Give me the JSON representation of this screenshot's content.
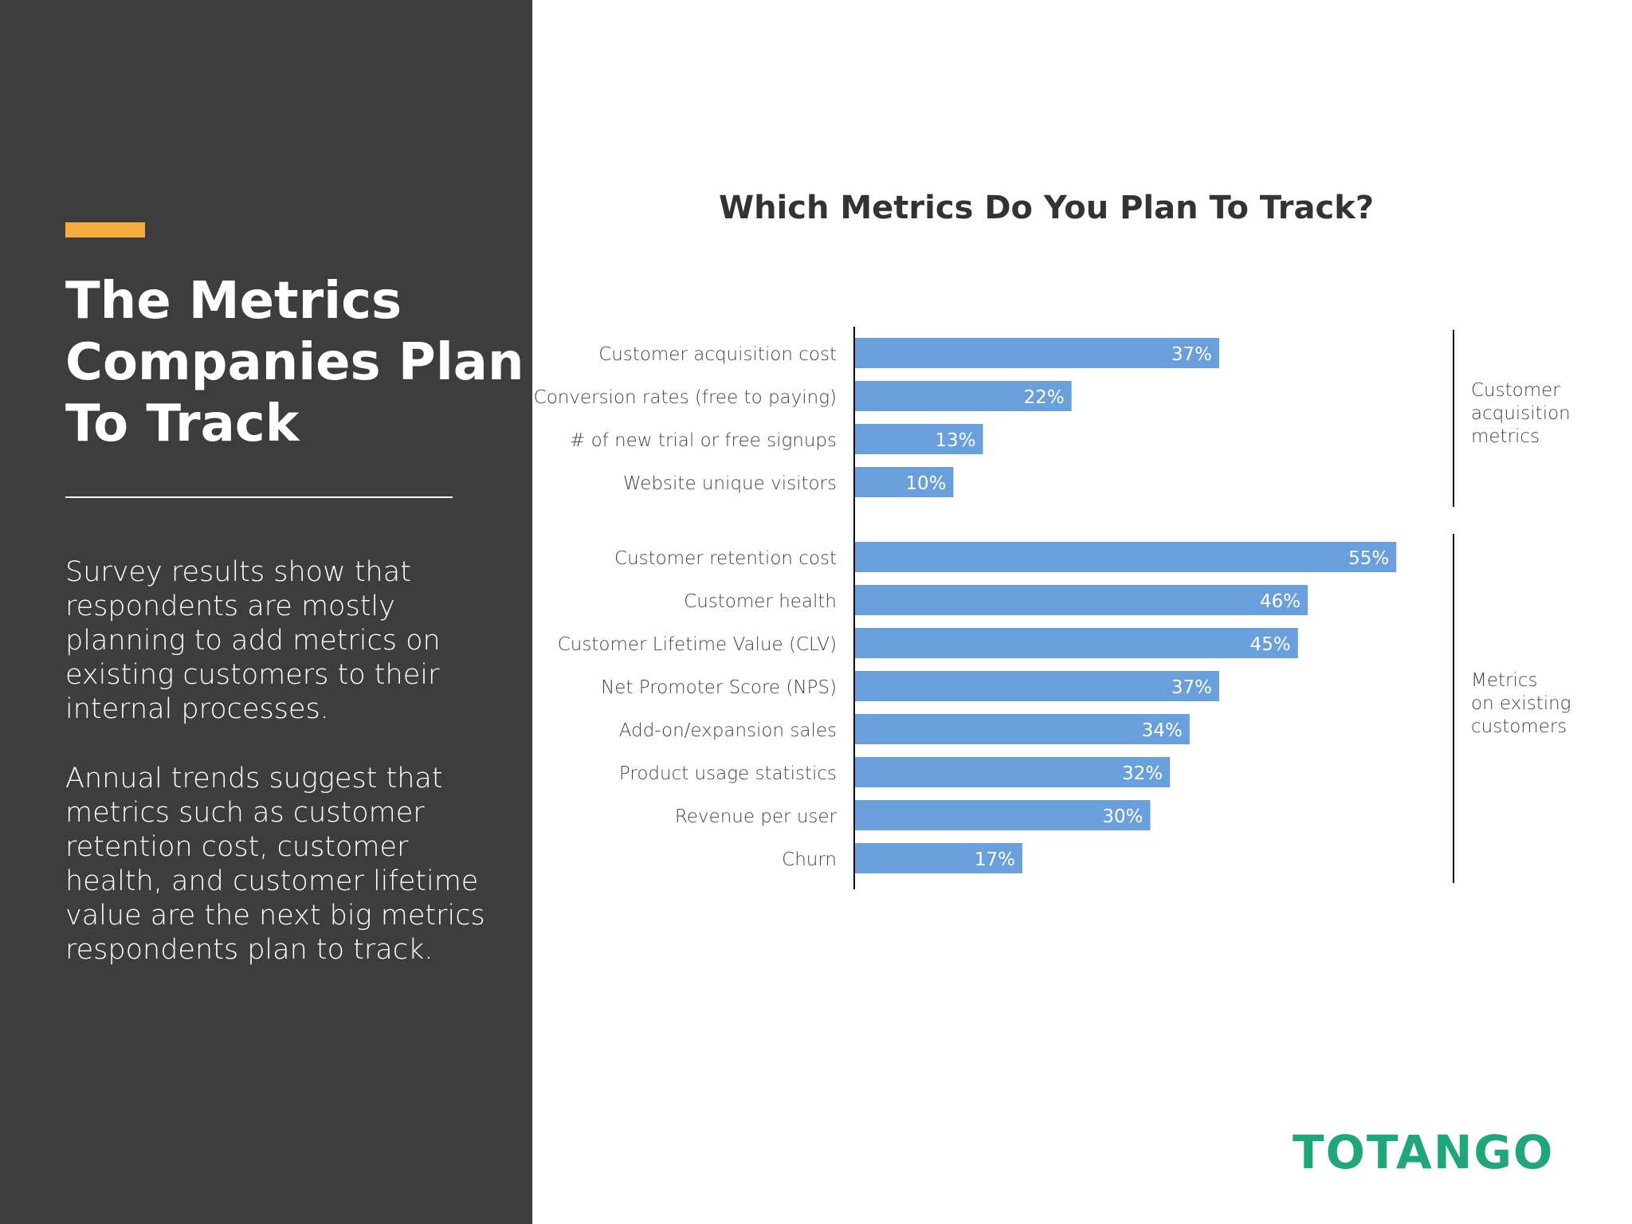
{
  "left_panel": {
    "headline": "The Metrics Companies Plan To Track",
    "paragraph_1": "Survey results show that respondents are mostly planning to add metrics on existing customers to their internal processes.",
    "paragraph_2": "Annual trends suggest that metrics such as customer retention cost, customer health, and customer lifetime value are the next big metrics respondents plan to track."
  },
  "brand": {
    "logo_text": "TOTANGO",
    "logo_color": "#1fa777"
  },
  "colors": {
    "panel_bg": "#3d3d3d",
    "accent": "#f6ae41",
    "bar": "#6a9fdd"
  },
  "chart_data": {
    "type": "bar",
    "orientation": "horizontal",
    "title": "Which Metrics Do You Plan To Track?",
    "xlabel": "",
    "ylabel": "",
    "value_suffix": "%",
    "xlim": [
      0,
      55
    ],
    "grid": false,
    "groups": [
      {
        "name": "Customer acquisition metrics",
        "categories": [
          "Customer acquisition cost",
          "Conversion rates (free to paying)",
          "# of new trial or free signups",
          "Website unique visitors"
        ],
        "values": [
          37,
          22,
          13,
          10
        ]
      },
      {
        "name": "Metrics on existing customers",
        "categories": [
          "Customer retention cost",
          "Customer health",
          "Customer Lifetime Value (CLV)",
          "Net Promoter Score (NPS)",
          "Add-on/expansion sales",
          "Product usage statistics",
          "Revenue per user",
          "Churn"
        ],
        "values": [
          55,
          46,
          45,
          37,
          34,
          32,
          30,
          17
        ]
      }
    ]
  }
}
